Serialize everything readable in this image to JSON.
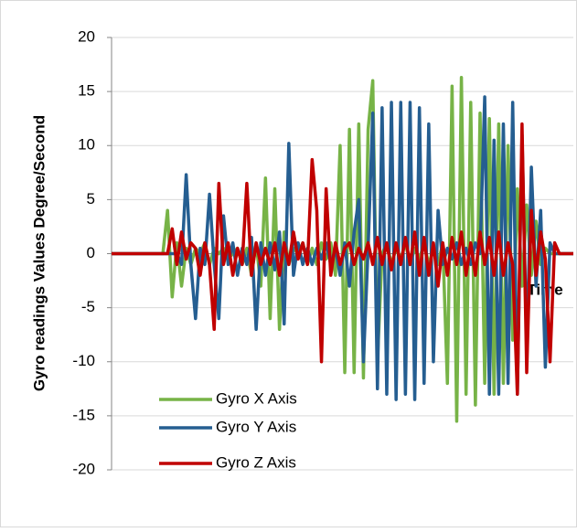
{
  "chart_data": {
    "type": "line",
    "y_label": "Gyro readings Values Degree/Second",
    "x_label": "Time",
    "ylim": [
      -20,
      20
    ],
    "yticks": [
      -20,
      -15,
      -10,
      -5,
      0,
      5,
      10,
      15,
      20
    ],
    "grid": true,
    "legend": "lower left",
    "series": [
      {
        "name": "Gyro X Axis",
        "color": "#77b347",
        "values": [
          0,
          0,
          0,
          0,
          0,
          0,
          0,
          0,
          0,
          0,
          0,
          0,
          4,
          -4,
          1,
          -3,
          0.5,
          -1,
          0.5,
          0,
          1,
          -1,
          0.5,
          0,
          0.5,
          -0.5,
          0,
          0.5,
          -1,
          0.5,
          -2,
          1,
          -3,
          7,
          -6,
          6,
          -7,
          2,
          -1,
          0.5,
          0,
          1,
          -1,
          0.5,
          -1,
          1,
          -0.5,
          1,
          -2,
          10,
          -11,
          11.5,
          -11,
          12,
          -11.5,
          11.5,
          16,
          -10,
          0,
          1,
          -1,
          0.5,
          -0.5,
          1,
          -1,
          0.5,
          -0.5,
          1,
          -1,
          0.5,
          -1,
          1,
          -12,
          15.5,
          -15.5,
          16.3,
          -13,
          14,
          -14,
          13,
          -12,
          12.5,
          -13,
          12,
          -12,
          10,
          -8,
          6,
          -3,
          4.5,
          -2,
          3,
          -1,
          0.5,
          0,
          0,
          0,
          0,
          0,
          0
        ]
      },
      {
        "name": "Gyro Y Axis",
        "color": "#255e91",
        "values": [
          0,
          0,
          0,
          0,
          0,
          0,
          0,
          0,
          0,
          0,
          0,
          0,
          0,
          0,
          0,
          -1,
          7.3,
          -1,
          -6,
          0.5,
          -1,
          5.5,
          -1,
          -6,
          3.5,
          -1,
          1,
          -2,
          0.5,
          -1,
          1.5,
          -7,
          1,
          -2,
          1,
          -1.5,
          2,
          -6.5,
          10.2,
          -2,
          1,
          -1,
          0.5,
          -1,
          0.5,
          -0.5,
          1,
          -1,
          0.5,
          -2,
          1,
          -3,
          2,
          5,
          -10,
          0.5,
          13,
          -12.5,
          13.5,
          -13,
          14,
          -13.5,
          14,
          -13,
          14,
          -13.5,
          13.5,
          -12,
          12,
          -10,
          4,
          -1,
          0.5,
          -0.5,
          1,
          -1,
          0.5,
          -1,
          1,
          0,
          14.5,
          -13,
          10.5,
          -13,
          12,
          -12,
          14,
          -13,
          11,
          -9,
          8,
          -3,
          4,
          -10.5,
          1,
          0,
          0,
          0,
          0,
          0
        ]
      },
      {
        "name": "Gyro Z Axis",
        "color": "#c00000",
        "values": [
          0,
          0,
          0,
          0,
          0,
          0,
          0,
          0,
          0,
          0,
          0,
          0,
          0,
          2.3,
          -1,
          2,
          -0.5,
          1,
          0.5,
          -2,
          1,
          -1,
          -7,
          6.5,
          -1,
          1,
          -2,
          0.5,
          -1,
          6.5,
          -2,
          1,
          -1,
          0.5,
          -1,
          1,
          -2,
          1,
          -1,
          2,
          -0.5,
          1,
          -1,
          8.7,
          4,
          -10,
          6,
          -2,
          1,
          -1,
          0.5,
          1,
          -1,
          0.5,
          -0.5,
          1,
          -1,
          1.5,
          -1,
          1,
          -1.5,
          1,
          -1,
          1.5,
          -1,
          2,
          -2,
          1.5,
          -2,
          1,
          -3,
          1,
          -2,
          1.5,
          -1,
          2,
          -2,
          1,
          -2,
          2,
          -1,
          1.5,
          -2,
          2,
          -2,
          1,
          -1,
          -13,
          12,
          -11,
          4,
          -2,
          2,
          -0.5,
          -10,
          1,
          0,
          0,
          0,
          0
        ]
      }
    ]
  }
}
